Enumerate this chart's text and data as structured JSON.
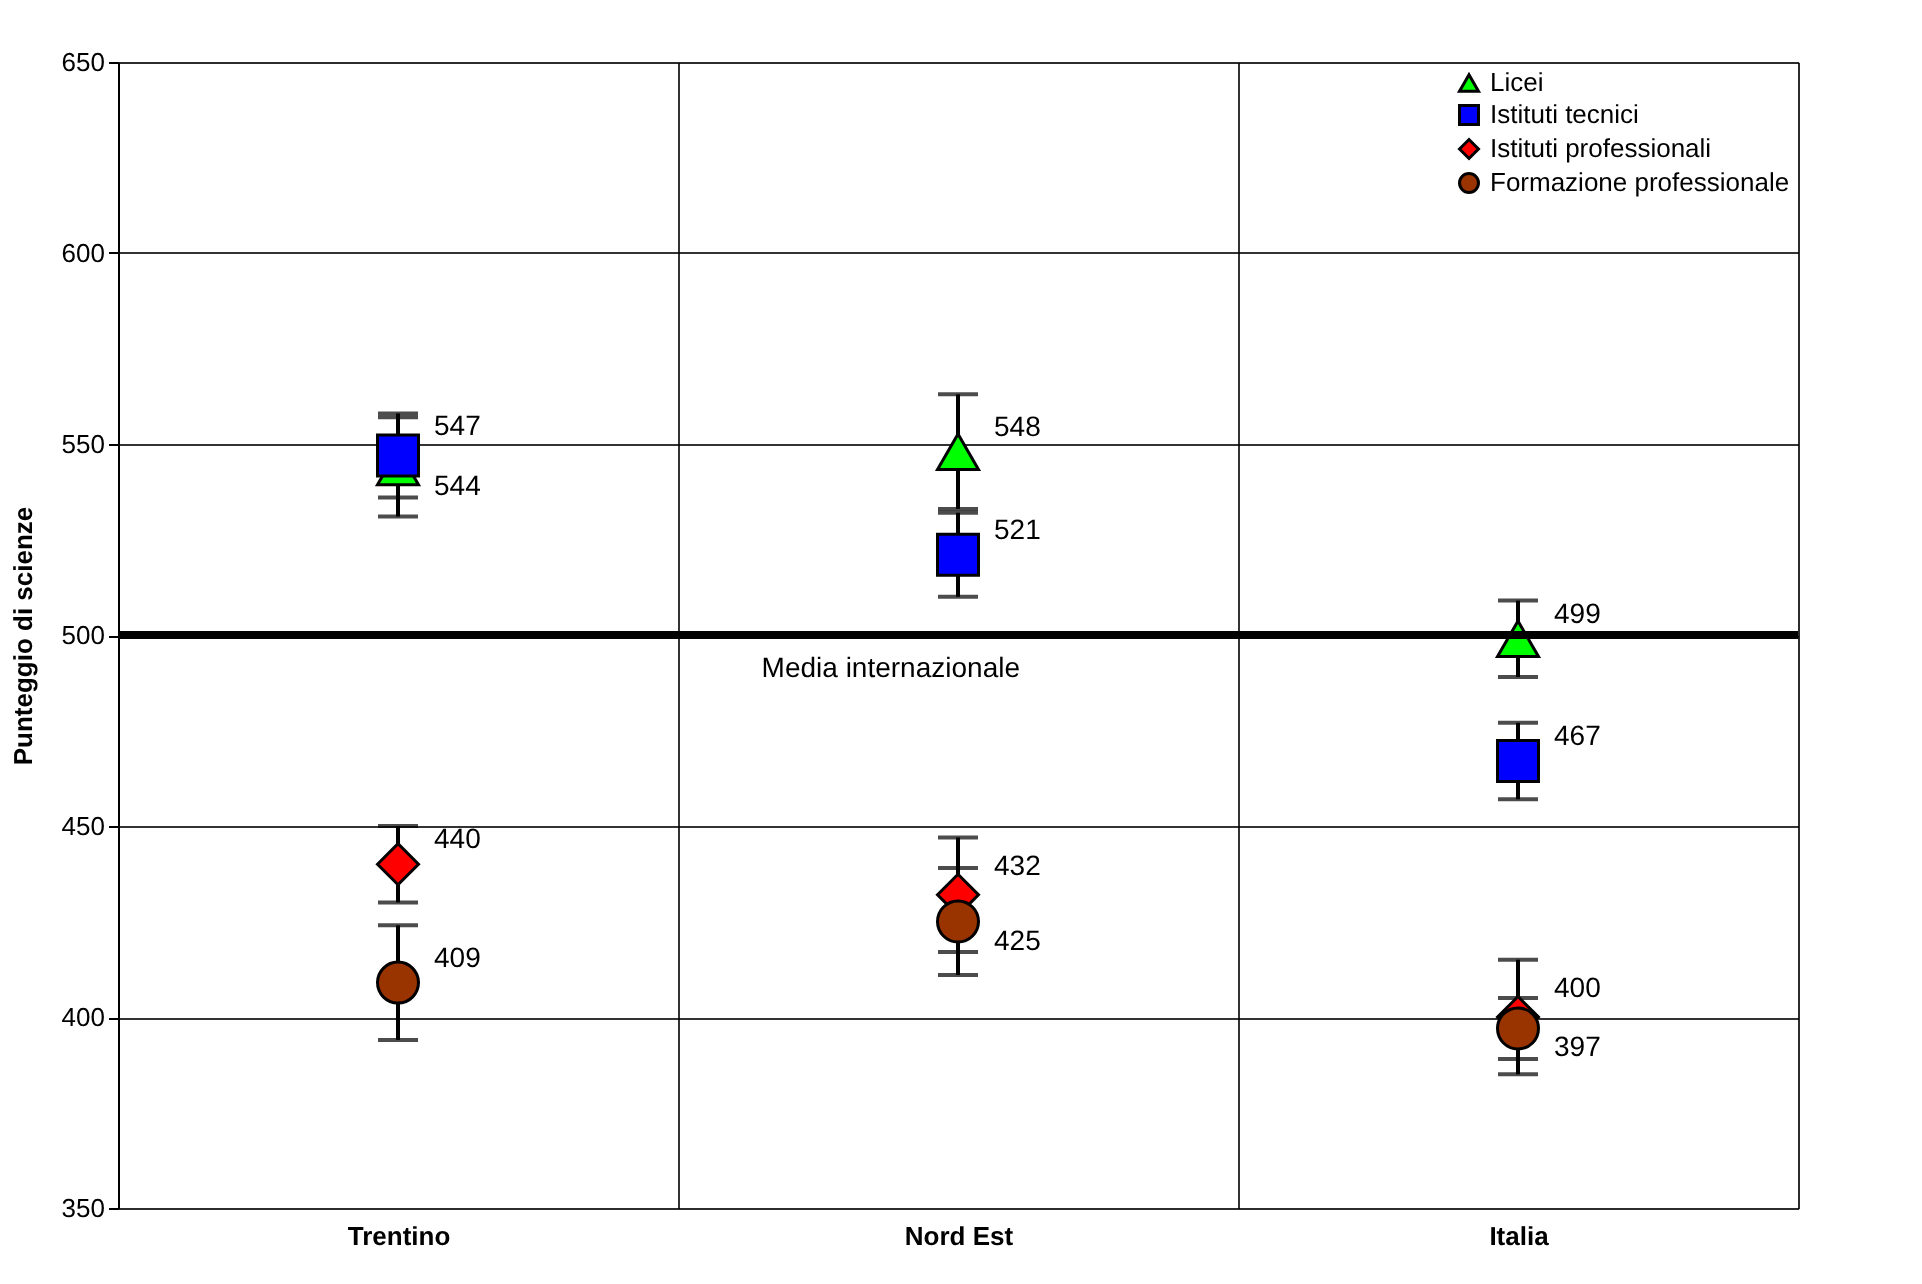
{
  "chart_data": {
    "type": "scatter",
    "ylabel": "Punteggio di scienze",
    "categories": [
      "Trentino",
      "Nord Est",
      "Italia"
    ],
    "series": [
      {
        "name": "Licei",
        "color": "#00ff00",
        "marker": "triangle",
        "values": [
          544,
          548,
          499
        ],
        "errors": [
          13,
          15,
          10
        ]
      },
      {
        "name": "Istituti tecnici",
        "color": "#0000ff",
        "marker": "square",
        "values": [
          547,
          521,
          467
        ],
        "errors": [
          11,
          11,
          10
        ]
      },
      {
        "name": "Istituti professionali",
        "color": "#ff0000",
        "marker": "diamond",
        "values": [
          440,
          432,
          400
        ],
        "errors": [
          10,
          15,
          15
        ]
      },
      {
        "name": "Formazione professionale",
        "color": "#993300",
        "marker": "circle",
        "values": [
          409,
          425,
          397
        ],
        "errors": [
          15,
          14,
          8
        ]
      }
    ],
    "ylim": [
      350,
      650
    ],
    "yticks": [
      350,
      400,
      450,
      500,
      550,
      600,
      650
    ],
    "ref_lines": [
      {
        "axis": "y",
        "value": 500,
        "label": "Media internazionale",
        "color": "#000000"
      }
    ],
    "data_labels": true,
    "grid": true,
    "legend": "top right"
  }
}
